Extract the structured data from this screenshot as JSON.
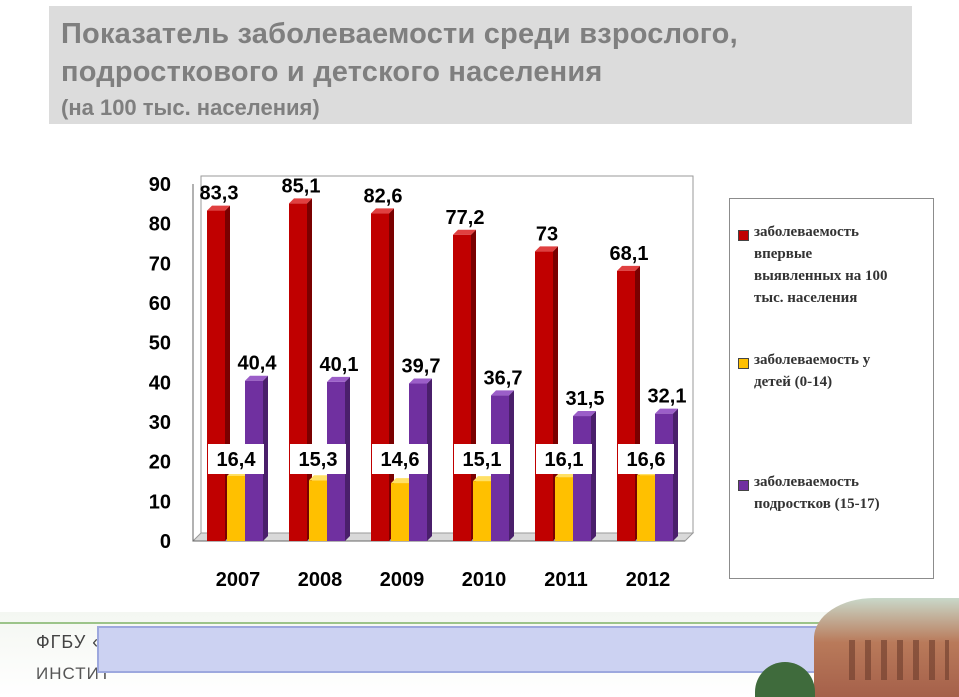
{
  "title": {
    "line1": "Показатель заболеваемости среди взрослого,",
    "line2": "подросткового и детского населения",
    "subtitle": "(на 100 тыс. населения)"
  },
  "chart_data": {
    "type": "bar",
    "categories": [
      "2007",
      "2008",
      "2009",
      "2010",
      "2011",
      "2012"
    ],
    "series": [
      {
        "name": "заболеваемость впервые выявленных на 100 тыс. населения",
        "color": "#c00000",
        "values": [
          83.3,
          85.1,
          82.6,
          77.2,
          73,
          68.1
        ],
        "labels": [
          "83,3",
          "85,1",
          "82,6",
          "77,2",
          "73",
          "68,1"
        ]
      },
      {
        "name": "заболеваемость у детей (0-14)",
        "color": "#ffc000",
        "values": [
          16.4,
          15.3,
          14.6,
          15.1,
          16.1,
          16.6
        ],
        "labels": [
          "16,4",
          "15,3",
          "14,6",
          "15,1",
          "16,1",
          "16,6"
        ]
      },
      {
        "name": "заболеваемость подростков (15-17)",
        "color": "#7030a0",
        "values": [
          40.4,
          40.1,
          39.7,
          36.7,
          31.5,
          32.1
        ],
        "labels": [
          "40,4",
          "40,1",
          "39,7",
          "36,7",
          "31,5",
          "32,1"
        ]
      }
    ],
    "ylim": [
      0,
      90
    ],
    "yticks": [
      "0",
      "10",
      "20",
      "30",
      "40",
      "50",
      "60",
      "70",
      "80",
      "90"
    ],
    "grid": false,
    "legend_position": "right"
  },
  "legend": {
    "items": [
      {
        "lines": [
          "заболеваемость",
          "впервые",
          "выявленных на 100",
          "тыс. населения"
        ]
      },
      {
        "lines": [
          "заболеваемость у",
          "детей (0-14)"
        ]
      },
      {
        "lines": [
          "заболеваемость",
          "подростков (15-17)"
        ]
      }
    ]
  },
  "footer": {
    "org_line1": "ФГБУ «",
    "org_line2": "ИНСТИТ"
  }
}
